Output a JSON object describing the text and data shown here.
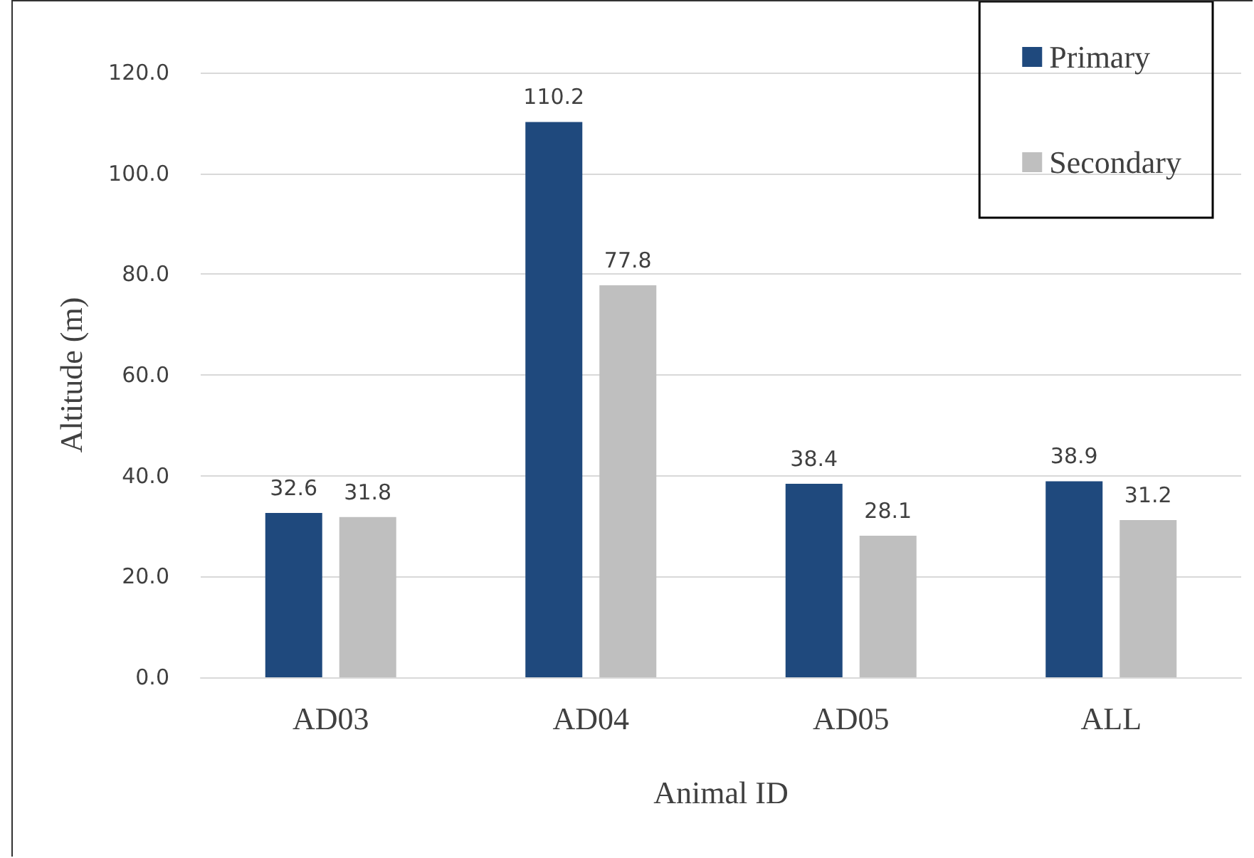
{
  "chart_data": {
    "type": "bar",
    "xlabel": "Animal ID",
    "ylabel": "Altitude (m)",
    "categories": [
      "AD03",
      "AD04",
      "AD05",
      "ALL"
    ],
    "series": [
      {
        "name": "Primary",
        "color": "#1f497d",
        "values": [
          32.6,
          110.2,
          38.4,
          38.9
        ]
      },
      {
        "name": "Secondary",
        "color": "#bfbfbf",
        "values": [
          31.8,
          77.8,
          28.1,
          31.2
        ]
      }
    ],
    "ylim": [
      0,
      120
    ],
    "yticks": [
      {
        "value": 0,
        "label": "0.0"
      },
      {
        "value": 20,
        "label": "20.0"
      },
      {
        "value": 40,
        "label": "40.0"
      },
      {
        "value": 60,
        "label": "60.0"
      },
      {
        "value": 80,
        "label": "80.0"
      },
      {
        "value": 100,
        "label": "100.0"
      },
      {
        "value": 120,
        "label": "120.0"
      }
    ],
    "grid": "y",
    "legend": "top right",
    "data_labels": true
  }
}
